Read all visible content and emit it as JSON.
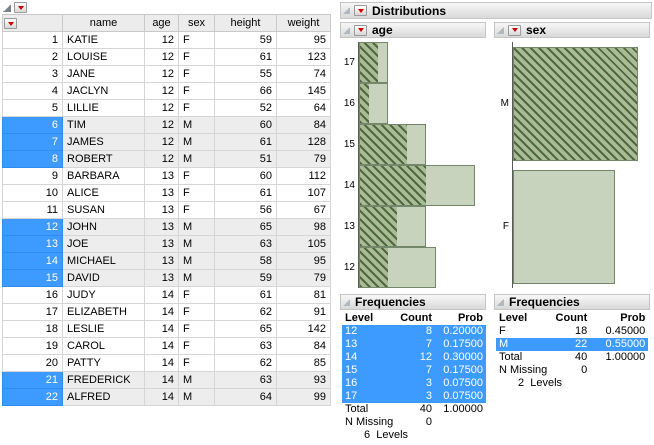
{
  "colors": {
    "selection_blue": "#3d9bff",
    "bar_fill": "#c8d3bd",
    "bar_border": "#75876b",
    "hatch_green": "#50683f",
    "red_triangle": "#cc0000"
  },
  "table": {
    "columns": [
      "",
      "name",
      "age",
      "sex",
      "height",
      "weight"
    ],
    "rows": [
      {
        "n": 1,
        "name": "KATIE",
        "age": 12,
        "sex": "F",
        "height": 59,
        "weight": 95,
        "selected": false
      },
      {
        "n": 2,
        "name": "LOUISE",
        "age": 12,
        "sex": "F",
        "height": 61,
        "weight": 123,
        "selected": false
      },
      {
        "n": 3,
        "name": "JANE",
        "age": 12,
        "sex": "F",
        "height": 55,
        "weight": 74,
        "selected": false
      },
      {
        "n": 4,
        "name": "JACLYN",
        "age": 12,
        "sex": "F",
        "height": 66,
        "weight": 145,
        "selected": false
      },
      {
        "n": 5,
        "name": "LILLIE",
        "age": 12,
        "sex": "F",
        "height": 52,
        "weight": 64,
        "selected": false
      },
      {
        "n": 6,
        "name": "TIM",
        "age": 12,
        "sex": "M",
        "height": 60,
        "weight": 84,
        "selected": true
      },
      {
        "n": 7,
        "name": "JAMES",
        "age": 12,
        "sex": "M",
        "height": 61,
        "weight": 128,
        "selected": true
      },
      {
        "n": 8,
        "name": "ROBERT",
        "age": 12,
        "sex": "M",
        "height": 51,
        "weight": 79,
        "selected": true
      },
      {
        "n": 9,
        "name": "BARBARA",
        "age": 13,
        "sex": "F",
        "height": 60,
        "weight": 112,
        "selected": false
      },
      {
        "n": 10,
        "name": "ALICE",
        "age": 13,
        "sex": "F",
        "height": 61,
        "weight": 107,
        "selected": false
      },
      {
        "n": 11,
        "name": "SUSAN",
        "age": 13,
        "sex": "F",
        "height": 56,
        "weight": 67,
        "selected": false
      },
      {
        "n": 12,
        "name": "JOHN",
        "age": 13,
        "sex": "M",
        "height": 65,
        "weight": 98,
        "selected": true
      },
      {
        "n": 13,
        "name": "JOE",
        "age": 13,
        "sex": "M",
        "height": 63,
        "weight": 105,
        "selected": true
      },
      {
        "n": 14,
        "name": "MICHAEL",
        "age": 13,
        "sex": "M",
        "height": 58,
        "weight": 95,
        "selected": true
      },
      {
        "n": 15,
        "name": "DAVID",
        "age": 13,
        "sex": "M",
        "height": 59,
        "weight": 79,
        "selected": true
      },
      {
        "n": 16,
        "name": "JUDY",
        "age": 14,
        "sex": "F",
        "height": 61,
        "weight": 81,
        "selected": false
      },
      {
        "n": 17,
        "name": "ELIZABETH",
        "age": 14,
        "sex": "F",
        "height": 62,
        "weight": 91,
        "selected": false
      },
      {
        "n": 18,
        "name": "LESLIE",
        "age": 14,
        "sex": "F",
        "height": 65,
        "weight": 142,
        "selected": false
      },
      {
        "n": 19,
        "name": "CAROL",
        "age": 14,
        "sex": "F",
        "height": 63,
        "weight": 84,
        "selected": false
      },
      {
        "n": 20,
        "name": "PATTY",
        "age": 14,
        "sex": "F",
        "height": 62,
        "weight": 85,
        "selected": false
      },
      {
        "n": 21,
        "name": "FREDERICK",
        "age": 14,
        "sex": "M",
        "height": 63,
        "weight": 93,
        "selected": true
      },
      {
        "n": 22,
        "name": "ALFRED",
        "age": 14,
        "sex": "M",
        "height": 64,
        "weight": 99,
        "selected": true
      }
    ]
  },
  "report": {
    "title": "Distributions",
    "panels": [
      {
        "title": "age",
        "freq": {
          "title": "Frequencies",
          "headers": [
            "Level",
            "Count",
            "Prob"
          ],
          "rows": [
            {
              "level": "12",
              "count": "8",
              "prob": "0.20000",
              "selected": true
            },
            {
              "level": "13",
              "count": "7",
              "prob": "0.17500",
              "selected": true
            },
            {
              "level": "14",
              "count": "12",
              "prob": "0.30000",
              "selected": true
            },
            {
              "level": "15",
              "count": "7",
              "prob": "0.17500",
              "selected": true
            },
            {
              "level": "16",
              "count": "3",
              "prob": "0.07500",
              "selected": true
            },
            {
              "level": "17",
              "count": "3",
              "prob": "0.07500",
              "selected": true
            }
          ],
          "total": {
            "label": "Total",
            "count": "40",
            "prob": "1.00000"
          },
          "n_missing": {
            "label": "N Missing",
            "value": "0"
          },
          "levels": "6  Levels"
        }
      },
      {
        "title": "sex",
        "freq": {
          "title": "Frequencies",
          "headers": [
            "Level",
            "Count",
            "Prob"
          ],
          "rows": [
            {
              "level": "F",
              "count": "18",
              "prob": "0.45000",
              "selected": false
            },
            {
              "level": "M",
              "count": "22",
              "prob": "0.55000",
              "selected": true
            }
          ],
          "total": {
            "label": "Total",
            "count": "40",
            "prob": "1.00000"
          },
          "n_missing": {
            "label": "N Missing",
            "value": "0"
          },
          "levels": "2  Levels"
        }
      }
    ]
  },
  "chart_data": [
    {
      "type": "bar",
      "title": "age",
      "orientation": "horizontal",
      "ylabel": "age",
      "xlabel": "",
      "categories": [
        "17",
        "16",
        "15",
        "14",
        "13",
        "12"
      ],
      "counts": [
        3,
        3,
        7,
        12,
        7,
        8
      ],
      "selected_counts": [
        2,
        1,
        5,
        7,
        4,
        3
      ],
      "xlim": [
        0,
        12
      ],
      "note": "hatched portion of each bar = currently selected (male) rows"
    },
    {
      "type": "bar",
      "title": "sex",
      "orientation": "horizontal",
      "ylabel": "sex",
      "xlabel": "",
      "categories": [
        "M",
        "F"
      ],
      "counts": [
        22,
        18
      ],
      "selected_counts": [
        22,
        0
      ],
      "xlim": [
        0,
        22
      ],
      "note": "M bar fully hatched = all male rows selected"
    }
  ]
}
